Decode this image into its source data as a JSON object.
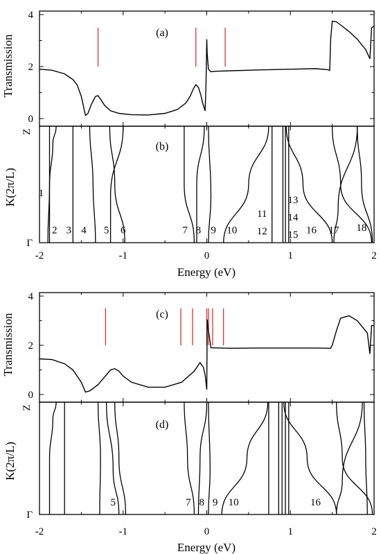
{
  "colors": {
    "axis": "#000000",
    "curve": "#000000",
    "marker": "#e03030"
  },
  "x_axis_label": "Energy (eV)",
  "chart_data": [
    {
      "id": "c1",
      "type": "line",
      "panel_label": "(a)",
      "ylabel": "Transmission",
      "xlim": [
        -2,
        2
      ],
      "ylim": [
        0,
        4
      ],
      "yticks": [
        0,
        2,
        4
      ],
      "marker_lines": [
        -1.3,
        -0.13,
        0.22
      ],
      "series": [
        {
          "x": [
            -2.0,
            -1.85,
            -1.7,
            -1.6,
            -1.55,
            -1.5,
            -1.45,
            -1.42,
            -1.38,
            -1.33,
            -1.3,
            -1.27,
            -1.22,
            -1.15,
            -1.05,
            -0.9,
            -0.7,
            -0.5,
            -0.35,
            -0.25,
            -0.2,
            -0.16,
            -0.13,
            -0.1,
            -0.07,
            -0.05,
            -0.03,
            -0.02,
            -0.01,
            0.0,
            0.005,
            0.02,
            0.05,
            0.1,
            0.3,
            0.6,
            1.0,
            1.3,
            1.45,
            1.47,
            1.48,
            1.5,
            1.55,
            1.6,
            1.7,
            1.8,
            1.9,
            1.95,
            1.97,
            2.0
          ],
          "y": [
            1.9,
            1.86,
            1.72,
            1.5,
            1.3,
            0.85,
            0.12,
            0.2,
            0.55,
            0.85,
            0.88,
            0.75,
            0.5,
            0.3,
            0.2,
            0.15,
            0.14,
            0.2,
            0.35,
            0.6,
            0.85,
            1.15,
            1.3,
            1.2,
            0.9,
            0.6,
            0.4,
            0.3,
            1.2,
            3.05,
            2.5,
            1.9,
            1.8,
            1.82,
            1.84,
            1.87,
            1.9,
            1.92,
            1.88,
            1.85,
            3.0,
            3.75,
            3.72,
            3.6,
            3.35,
            3.05,
            2.65,
            2.3,
            3.5,
            3.55
          ]
        }
      ]
    },
    {
      "id": "b1",
      "type": "line",
      "panel_label": "(b)",
      "ylabel": "K(2π/L)",
      "xlim": [
        -2,
        2
      ],
      "y_ticks": [
        "Γ",
        "Z"
      ],
      "band_labels": [
        {
          "text": "1",
          "e": -1.98,
          "k": 0.43
        },
        {
          "text": "2",
          "e": -1.82,
          "k": 0.11
        },
        {
          "text": "3",
          "e": -1.65,
          "k": 0.11
        },
        {
          "text": "4",
          "e": -1.47,
          "k": 0.11
        },
        {
          "text": "5",
          "e": -1.2,
          "k": 0.11
        },
        {
          "text": "6",
          "e": -1.0,
          "k": 0.11
        },
        {
          "text": "7",
          "e": -0.26,
          "k": 0.11
        },
        {
          "text": "8",
          "e": -0.1,
          "k": 0.11
        },
        {
          "text": "9",
          "e": 0.08,
          "k": 0.11
        },
        {
          "text": "10",
          "e": 0.3,
          "k": 0.11
        },
        {
          "text": "11",
          "e": 0.66,
          "k": 0.25
        },
        {
          "text": "12",
          "e": 0.66,
          "k": 0.1
        },
        {
          "text": "13",
          "e": 1.03,
          "k": 0.37
        },
        {
          "text": "14",
          "e": 1.03,
          "k": 0.22
        },
        {
          "text": "15",
          "e": 1.03,
          "k": 0.07
        },
        {
          "text": "16",
          "e": 1.25,
          "k": 0.11
        },
        {
          "text": "17",
          "e": 1.52,
          "k": 0.11
        },
        {
          "text": "18",
          "e": 1.85,
          "k": 0.13
        }
      ],
      "bands": [
        [
          [
            -1.9,
            0
          ],
          [
            -1.88,
            0.5
          ],
          [
            -1.84,
            0.85
          ],
          [
            -1.8,
            1
          ]
        ],
        [
          [
            -1.88,
            0
          ],
          [
            -1.88,
            1
          ]
        ],
        [
          [
            -1.6,
            0
          ],
          [
            -1.6,
            1
          ]
        ],
        [
          [
            -1.33,
            0
          ],
          [
            -1.36,
            0.5
          ],
          [
            -1.4,
            1
          ]
        ],
        [
          [
            -1.15,
            0
          ],
          [
            -1.15,
            0.4
          ],
          [
            -1.0,
            1
          ]
        ],
        [
          [
            -0.98,
            0
          ],
          [
            -1.1,
            0.5
          ],
          [
            -1.16,
            1
          ]
        ],
        [
          [
            -0.15,
            0
          ],
          [
            -0.27,
            0.5
          ],
          [
            -0.27,
            1
          ]
        ],
        [
          [
            -0.12,
            0
          ],
          [
            -0.12,
            0.5
          ],
          [
            -0.03,
            1
          ]
        ],
        [
          [
            0.02,
            0
          ],
          [
            0.05,
            0.4
          ],
          [
            0.02,
            1
          ]
        ],
        [
          [
            0.2,
            0
          ],
          [
            0.5,
            0.5
          ],
          [
            0.74,
            1
          ]
        ],
        [
          [
            0.78,
            0
          ],
          [
            0.78,
            1
          ]
        ],
        [
          [
            0.91,
            0
          ],
          [
            0.91,
            1
          ]
        ],
        [
          [
            0.94,
            0
          ],
          [
            0.94,
            1
          ]
        ],
        [
          [
            0.98,
            0
          ],
          [
            0.98,
            1
          ]
        ],
        [
          [
            1.5,
            0
          ],
          [
            1.15,
            0.5
          ],
          [
            0.95,
            1
          ]
        ],
        [
          [
            1.52,
            0
          ],
          [
            1.57,
            0.3
          ],
          [
            1.8,
            1
          ]
        ],
        [
          [
            1.98,
            0
          ],
          [
            1.85,
            0.5
          ],
          [
            1.8,
            1
          ]
        ],
        [
          [
            1.97,
            0
          ],
          [
            1.6,
            0.5
          ],
          [
            1.5,
            1
          ]
        ]
      ]
    },
    {
      "id": "c2",
      "type": "line",
      "panel_label": "(c)",
      "ylabel": "Transmission",
      "xlim": [
        -2,
        2
      ],
      "ylim": [
        0,
        4
      ],
      "yticks": [
        0,
        2,
        4
      ],
      "marker_lines": [
        -1.21,
        -0.31,
        -0.17,
        0.0,
        0.02,
        0.07,
        0.2
      ],
      "series": [
        {
          "x": [
            -2.0,
            -1.85,
            -1.7,
            -1.6,
            -1.5,
            -1.45,
            -1.4,
            -1.3,
            -1.2,
            -1.15,
            -1.1,
            -1.05,
            -1.0,
            -0.9,
            -0.7,
            -0.5,
            -0.3,
            -0.15,
            -0.08,
            -0.04,
            -0.02,
            -0.01,
            0.0,
            0.005,
            0.02,
            0.05,
            0.3,
            0.6,
            1.0,
            1.3,
            1.48,
            1.5,
            1.55,
            1.6,
            1.7,
            1.8,
            1.92,
            1.95,
            1.97,
            2.0
          ],
          "y": [
            1.45,
            1.42,
            1.25,
            1.0,
            0.5,
            0.1,
            0.15,
            0.4,
            0.8,
            1.0,
            1.05,
            0.95,
            0.75,
            0.5,
            0.3,
            0.3,
            0.5,
            0.95,
            1.3,
            1.1,
            0.8,
            0.5,
            0.2,
            3.05,
            2.6,
            1.9,
            1.88,
            1.89,
            1.89,
            1.89,
            1.88,
            2.0,
            2.6,
            3.1,
            3.2,
            3.0,
            2.5,
            1.65,
            2.8,
            2.8
          ]
        }
      ]
    },
    {
      "id": "d1",
      "type": "line",
      "panel_label": "(d)",
      "ylabel": "K(2π/L)",
      "xlim": [
        -2,
        2
      ],
      "xticks": [
        -2,
        -1,
        0,
        1,
        2
      ],
      "y_ticks": [
        "Γ",
        "Z"
      ],
      "band_labels": [
        {
          "text": "5",
          "e": -1.12,
          "k": 0.11
        },
        {
          "text": "7",
          "e": -0.22,
          "k": 0.11
        },
        {
          "text": "8",
          "e": -0.06,
          "k": 0.11
        },
        {
          "text": "9",
          "e": 0.1,
          "k": 0.11
        },
        {
          "text": "10",
          "e": 0.32,
          "k": 0.11
        },
        {
          "text": "16",
          "e": 1.3,
          "k": 0.11
        }
      ],
      "bands": [
        [
          [
            -1.88,
            0
          ],
          [
            -1.88,
            0.5
          ],
          [
            -1.84,
            0.85
          ],
          [
            -1.8,
            1
          ]
        ],
        [
          [
            -1.7,
            0
          ],
          [
            -1.7,
            1
          ]
        ],
        [
          [
            -1.28,
            0
          ],
          [
            -1.27,
            0.5
          ],
          [
            -1.3,
            1
          ]
        ],
        [
          [
            -1.05,
            0
          ],
          [
            -1.12,
            0.4
          ],
          [
            -1.2,
            1
          ]
        ],
        [
          [
            -0.97,
            0
          ],
          [
            -1.05,
            0.5
          ],
          [
            -1.1,
            1
          ]
        ],
        [
          [
            -0.15,
            0
          ],
          [
            -0.23,
            0.5
          ],
          [
            -0.27,
            1
          ]
        ],
        [
          [
            -0.1,
            0
          ],
          [
            -0.08,
            0.5
          ],
          [
            0.0,
            1
          ]
        ],
        [
          [
            0.02,
            0
          ],
          [
            0.04,
            0.4
          ],
          [
            0.02,
            1
          ]
        ],
        [
          [
            0.18,
            0
          ],
          [
            0.48,
            0.5
          ],
          [
            0.73,
            1
          ]
        ],
        [
          [
            0.74,
            0
          ],
          [
            0.74,
            1
          ]
        ],
        [
          [
            0.86,
            0
          ],
          [
            0.86,
            1
          ]
        ],
        [
          [
            0.9,
            0
          ],
          [
            0.9,
            1
          ]
        ],
        [
          [
            0.94,
            0
          ],
          [
            0.94,
            1
          ]
        ],
        [
          [
            0.98,
            0
          ],
          [
            0.98,
            1
          ]
        ],
        [
          [
            1.55,
            0
          ],
          [
            1.2,
            0.5
          ],
          [
            0.92,
            1
          ]
        ],
        [
          [
            1.55,
            0
          ],
          [
            1.62,
            0.3
          ],
          [
            1.86,
            1
          ]
        ],
        [
          [
            1.92,
            0
          ],
          [
            1.9,
            0.5
          ],
          [
            1.88,
            1
          ]
        ],
        [
          [
            1.98,
            0
          ],
          [
            1.62,
            0.5
          ],
          [
            1.55,
            1
          ]
        ]
      ]
    }
  ]
}
